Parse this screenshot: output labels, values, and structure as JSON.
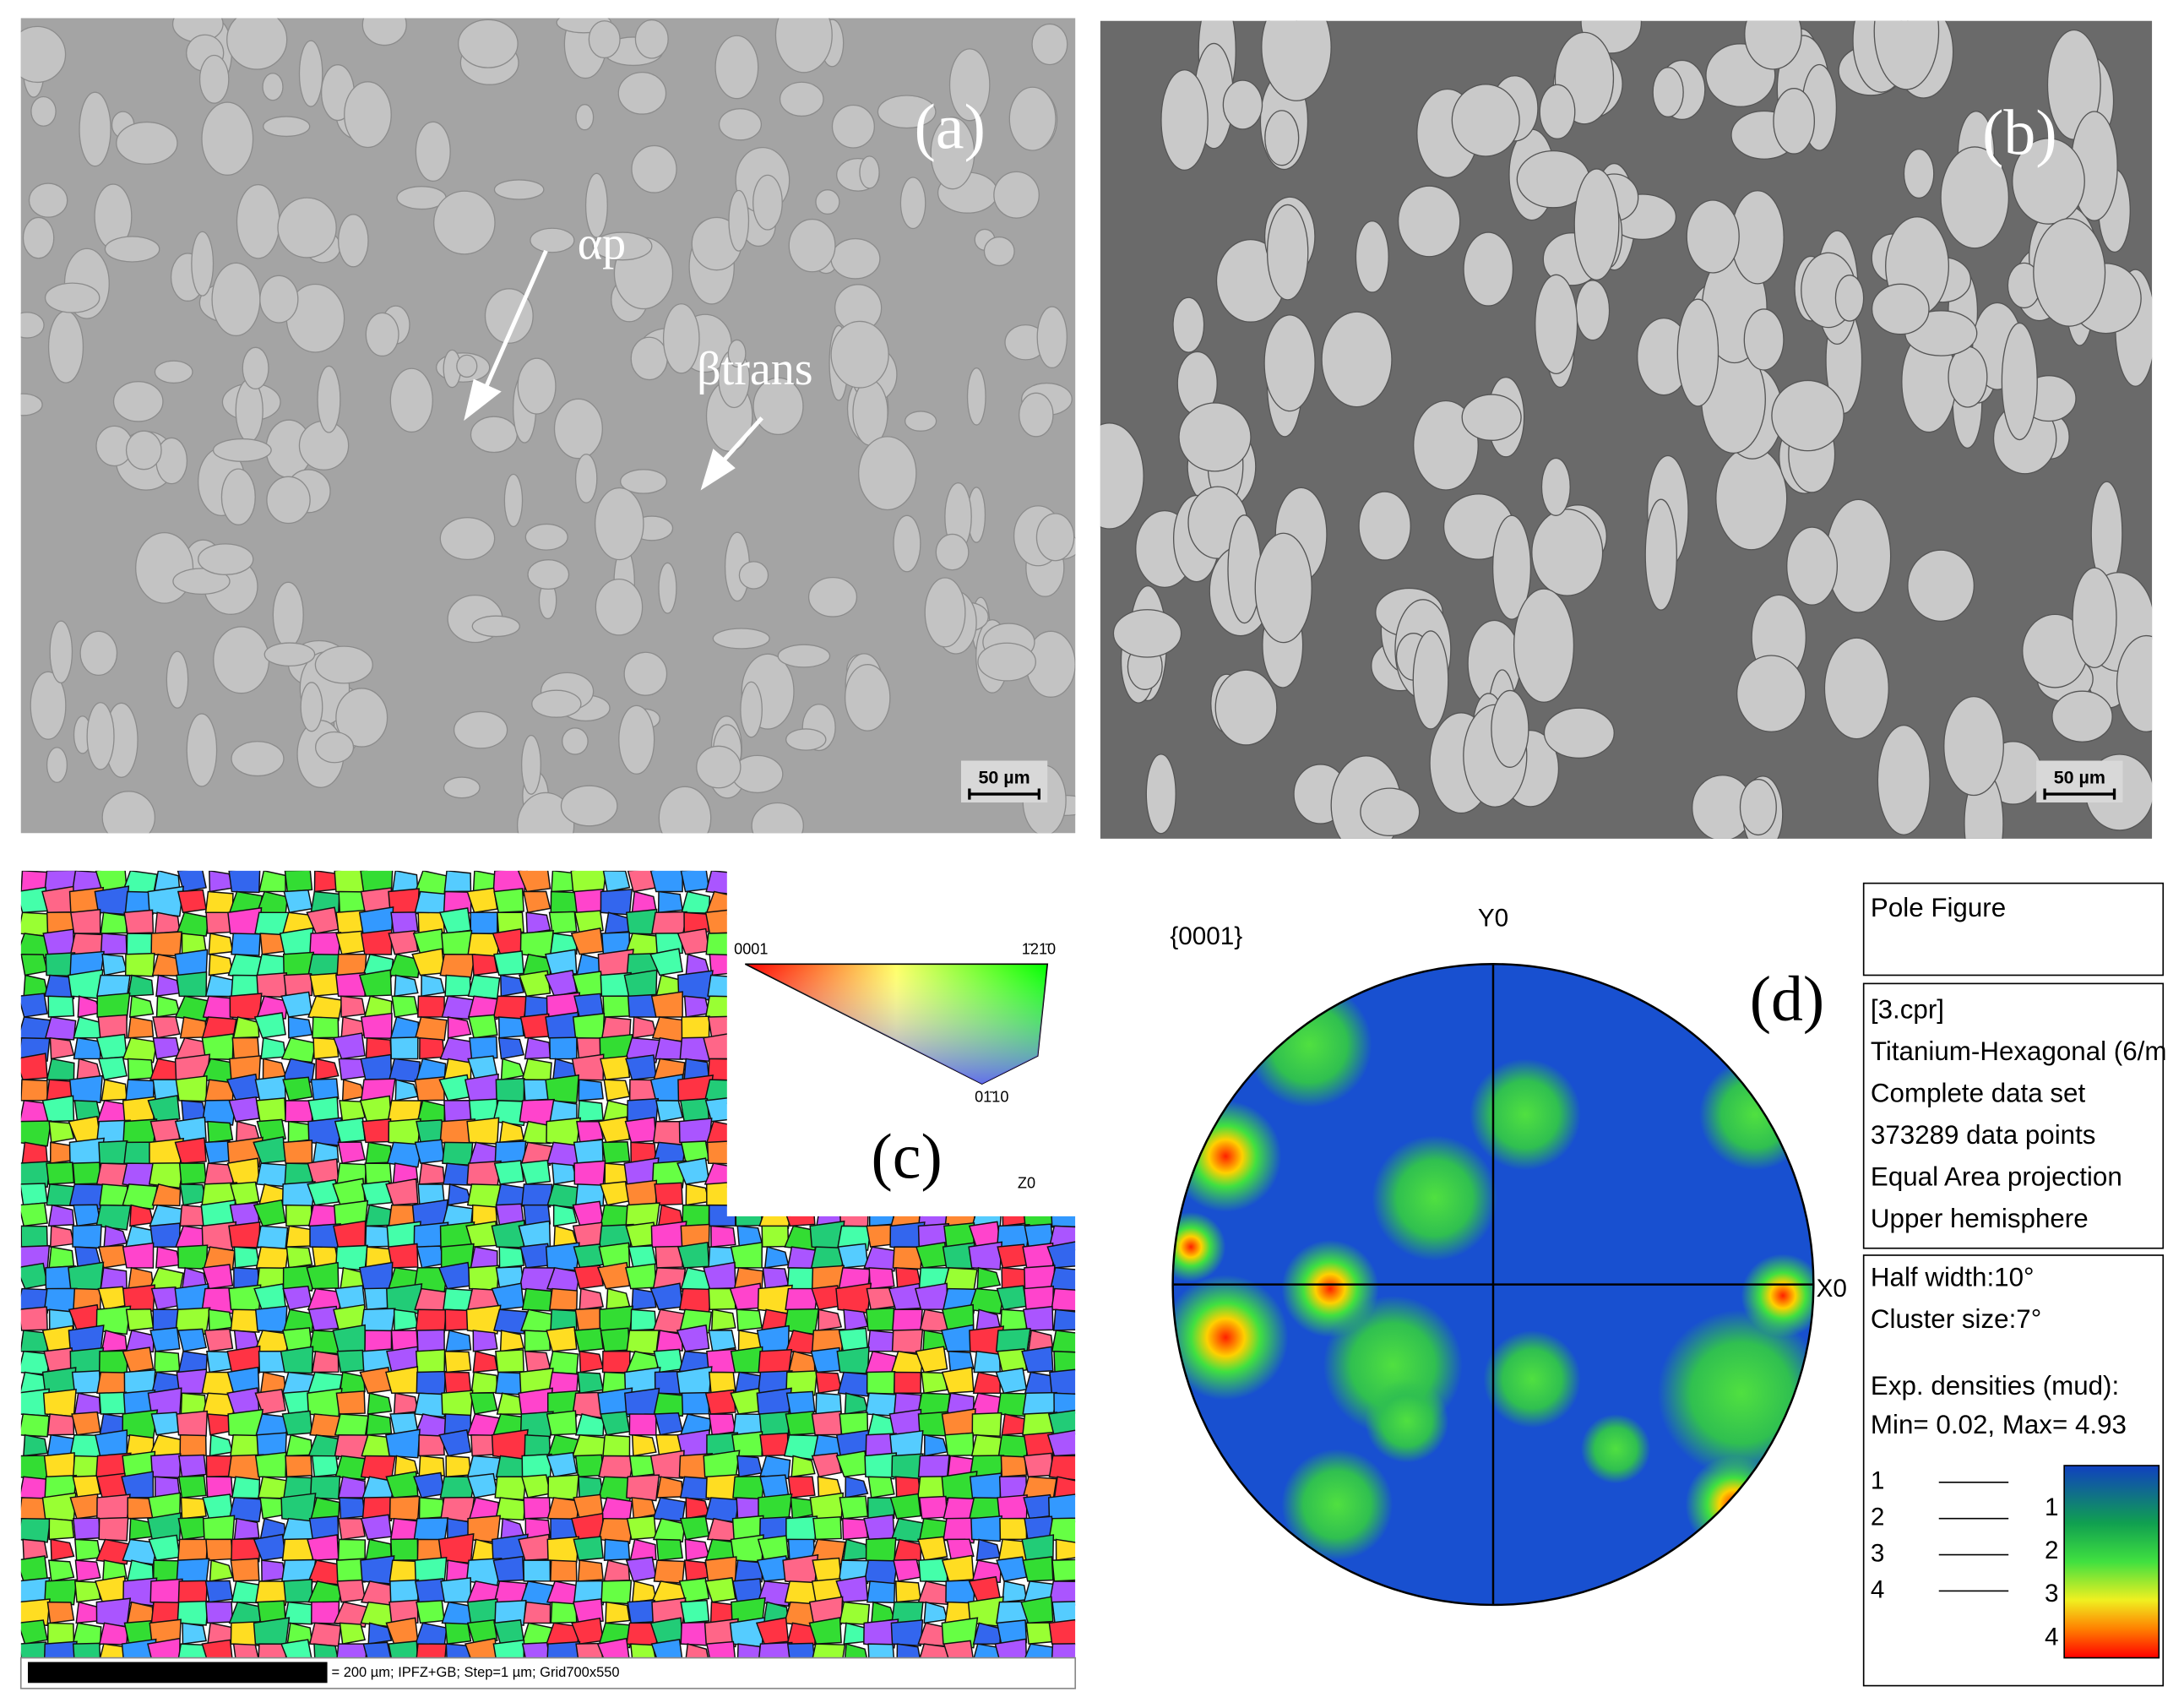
{
  "panels": {
    "a": {
      "label": "(a)",
      "annotations": [
        "αp",
        "βtrans"
      ],
      "scale_bar": "50 µm"
    },
    "b": {
      "label": "(b)",
      "scale_bar": "50 µm"
    },
    "c": {
      "label": "(c)",
      "scale_bar_text": "= 200 µm; IPFZ+GB; Step=1 µm; Grid700x550",
      "ipf_key": {
        "corner_0001": "0001",
        "corner_1210": "1̄21̄0",
        "corner_0110": "01̄10",
        "axis": "Z0"
      }
    },
    "d": {
      "label": "(d)",
      "pole": "{0001}",
      "y_axis": "Y0",
      "x_axis": "X0",
      "info": {
        "title": "Pole Figure",
        "file": "[3.cpr]",
        "phase": "Titanium-Hexagonal (6/m",
        "dataset": "Complete data set",
        "points": "373289 data points",
        "projection": "Equal Area projection",
        "hemisphere": "Upper hemisphere",
        "half_width": "Half width:10°",
        "cluster": "Cluster size:7°",
        "densities": "Exp. densities (mud):",
        "minmax": "Min= 0.02, Max= 4.93"
      },
      "contour_levels": [
        1,
        2,
        3,
        4
      ],
      "colorbar_labels": [
        1,
        2,
        3,
        4
      ]
    }
  }
}
